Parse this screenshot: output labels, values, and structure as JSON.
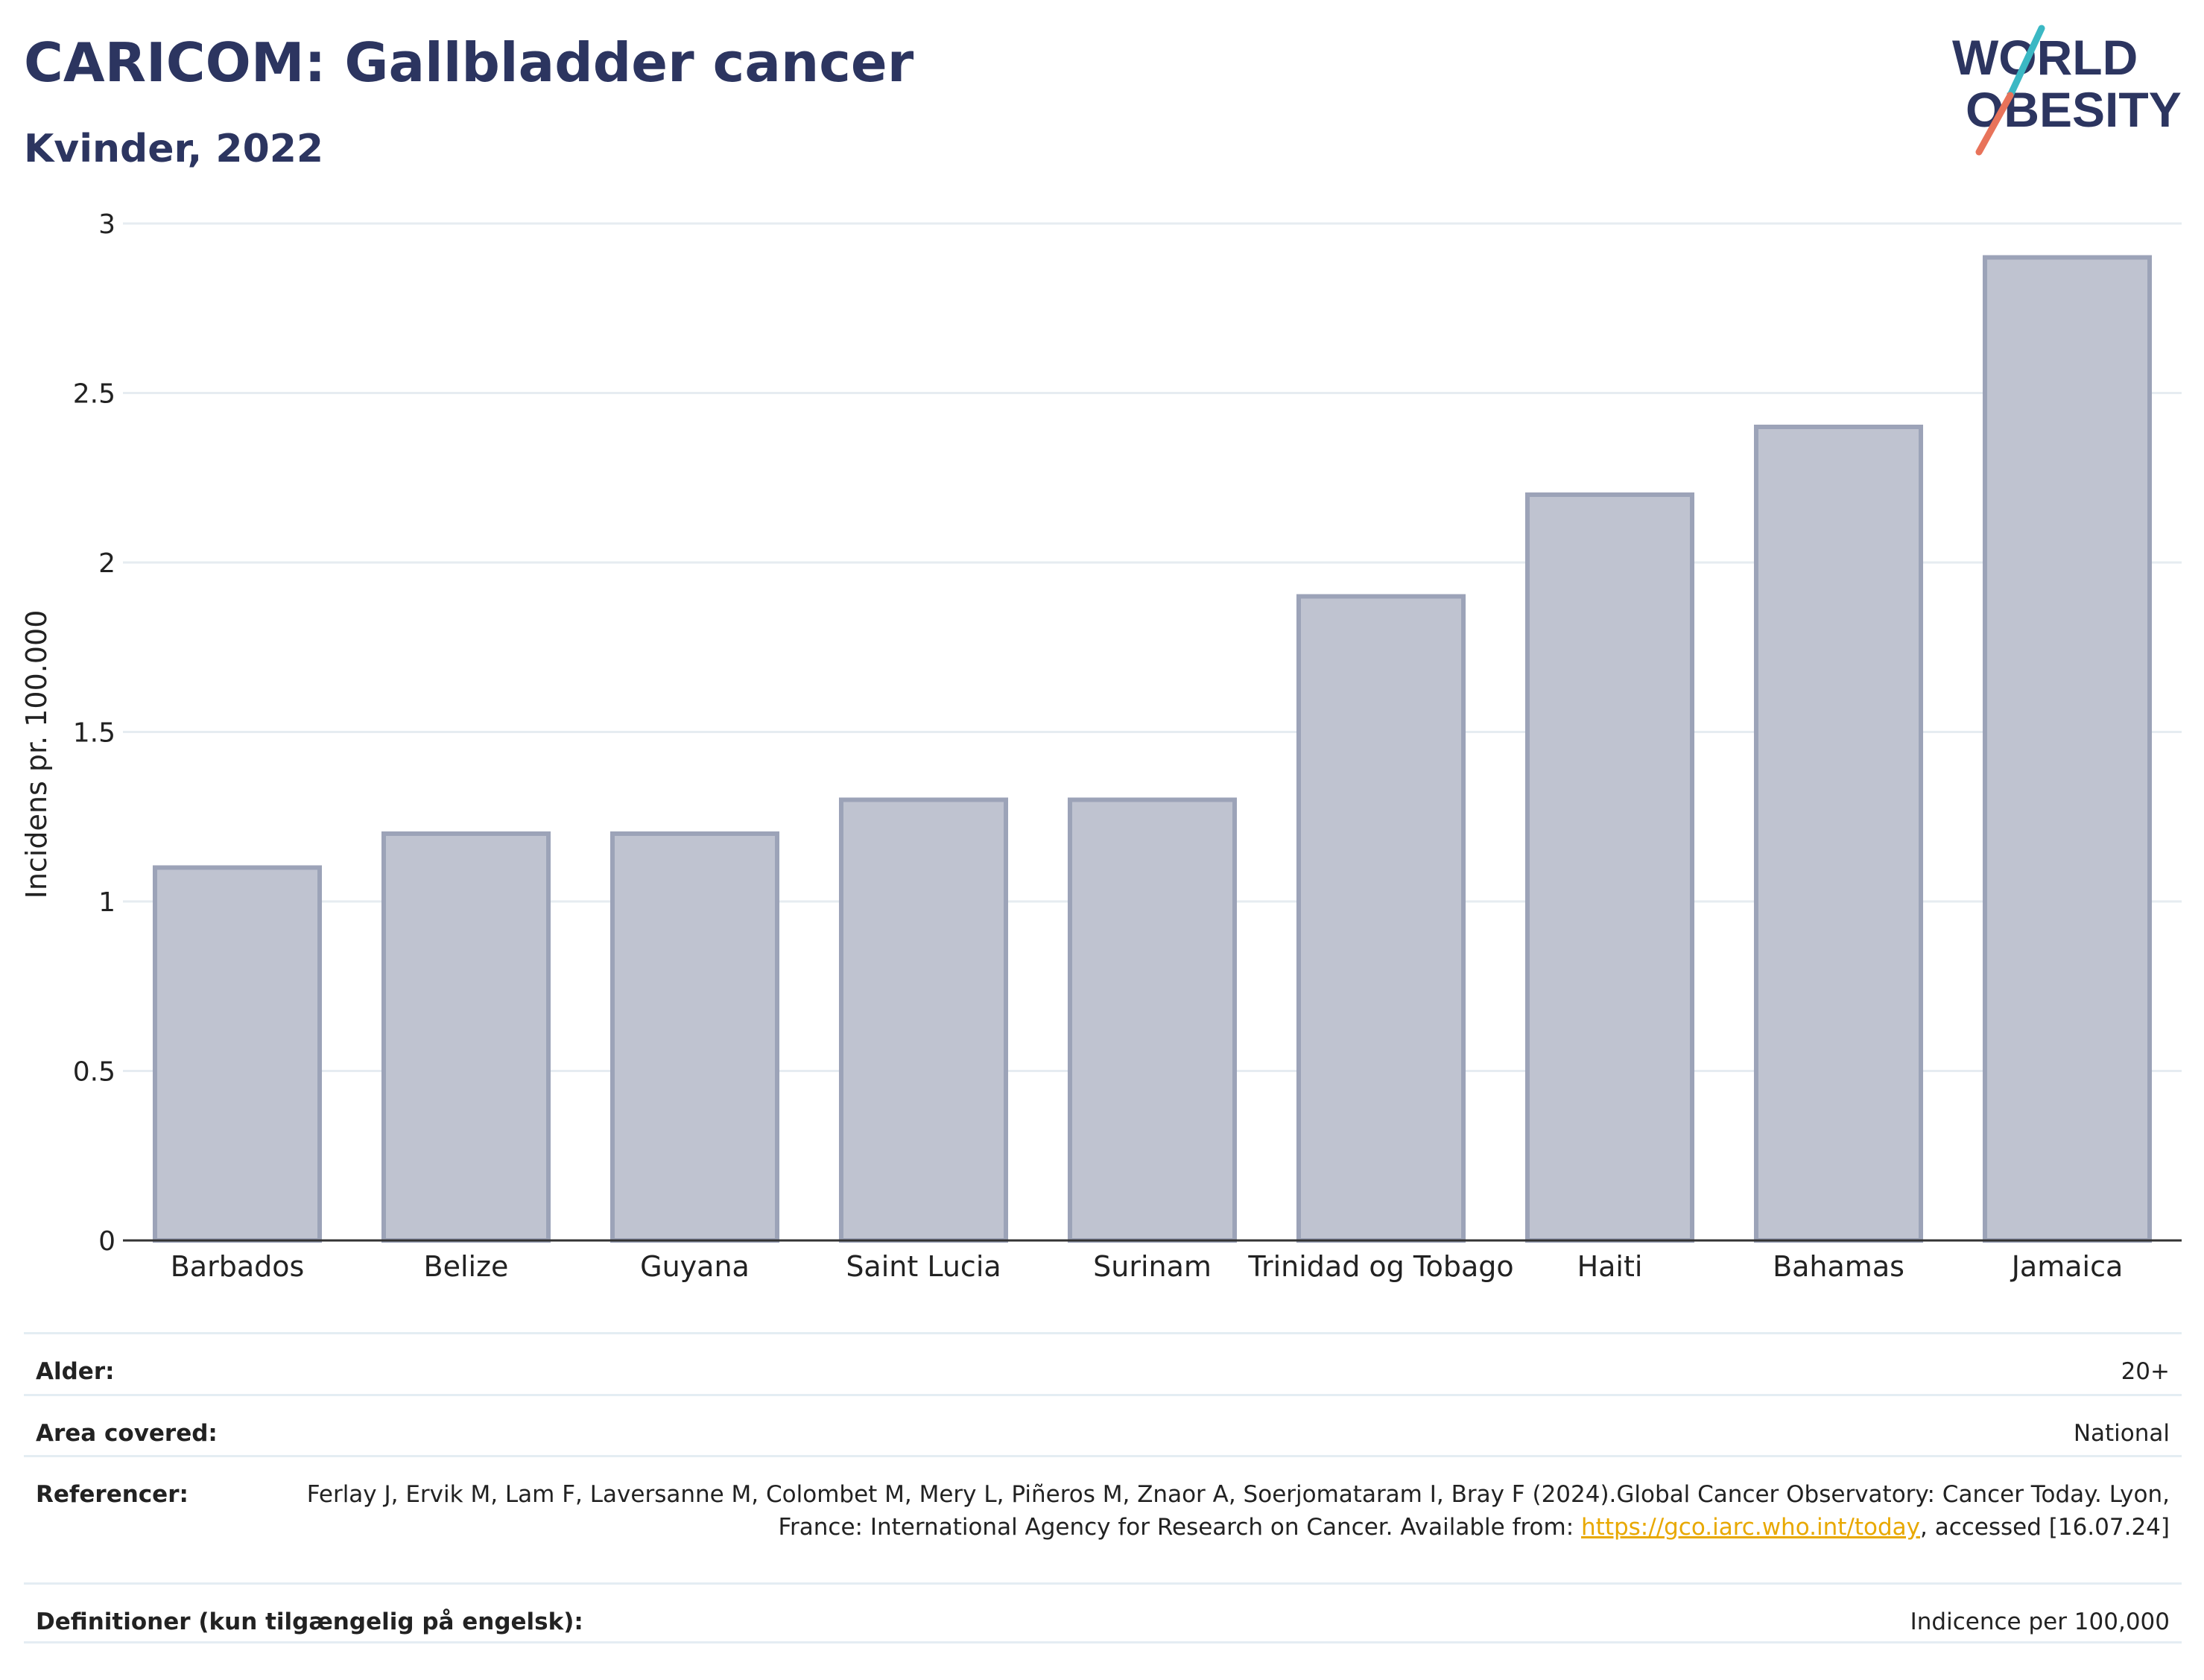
{
  "header": {
    "title": "CARICOM: Gallbladder cancer",
    "subtitle": "Kvinder, 2022"
  },
  "logo": {
    "line1": "WORLD",
    "line2": "OBESITY",
    "colors": {
      "text": "#2c3560",
      "slash_top": "#3bb8c4",
      "slash_bottom": "#e8735a"
    }
  },
  "chart_data": {
    "type": "bar",
    "categories": [
      "Barbados",
      "Belize",
      "Guyana",
      "Saint Lucia",
      "Surinam",
      "Trinidad og Tobago",
      "Haiti",
      "Bahamas",
      "Jamaica"
    ],
    "values": [
      1.1,
      1.2,
      1.2,
      1.3,
      1.3,
      1.9,
      2.2,
      2.4,
      2.9
    ],
    "ylabel": "Incidens pr. 100.000",
    "xlabel": "",
    "ylim": [
      0,
      3
    ],
    "yticks": [
      0,
      0.5,
      1,
      1.5,
      2,
      2.5,
      3
    ],
    "ytick_labels": [
      "0",
      "0.5",
      "1",
      "1.5",
      "2",
      "2.5",
      "3"
    ],
    "grid": true,
    "colors": {
      "bar_fill": "#bfc3d0",
      "bar_stroke": "#9ca3b8",
      "grid": "#e6ecf1",
      "axis": "#333333"
    }
  },
  "meta": {
    "rows": [
      {
        "label": "Alder:",
        "value": "20+"
      },
      {
        "label": "Area covered:",
        "value": "National"
      },
      {
        "label": "Referencer:",
        "value_before": "Ferlay J, Ervik M, Lam F, Laversanne M, Colombet M, Mery L, Piñeros M, Znaor A, Soerjomataram I, Bray F (2024).Global Cancer Observatory: Cancer Today. Lyon, France: International Agency for Research on Cancer. Available from: ",
        "link": "https://gco.iarc.who.int/today",
        "value_after": ", accessed [16.07.24]"
      },
      {
        "label": "Definitioner (kun tilgængelig på engelsk):",
        "value": "Indicence per 100,000"
      }
    ]
  }
}
